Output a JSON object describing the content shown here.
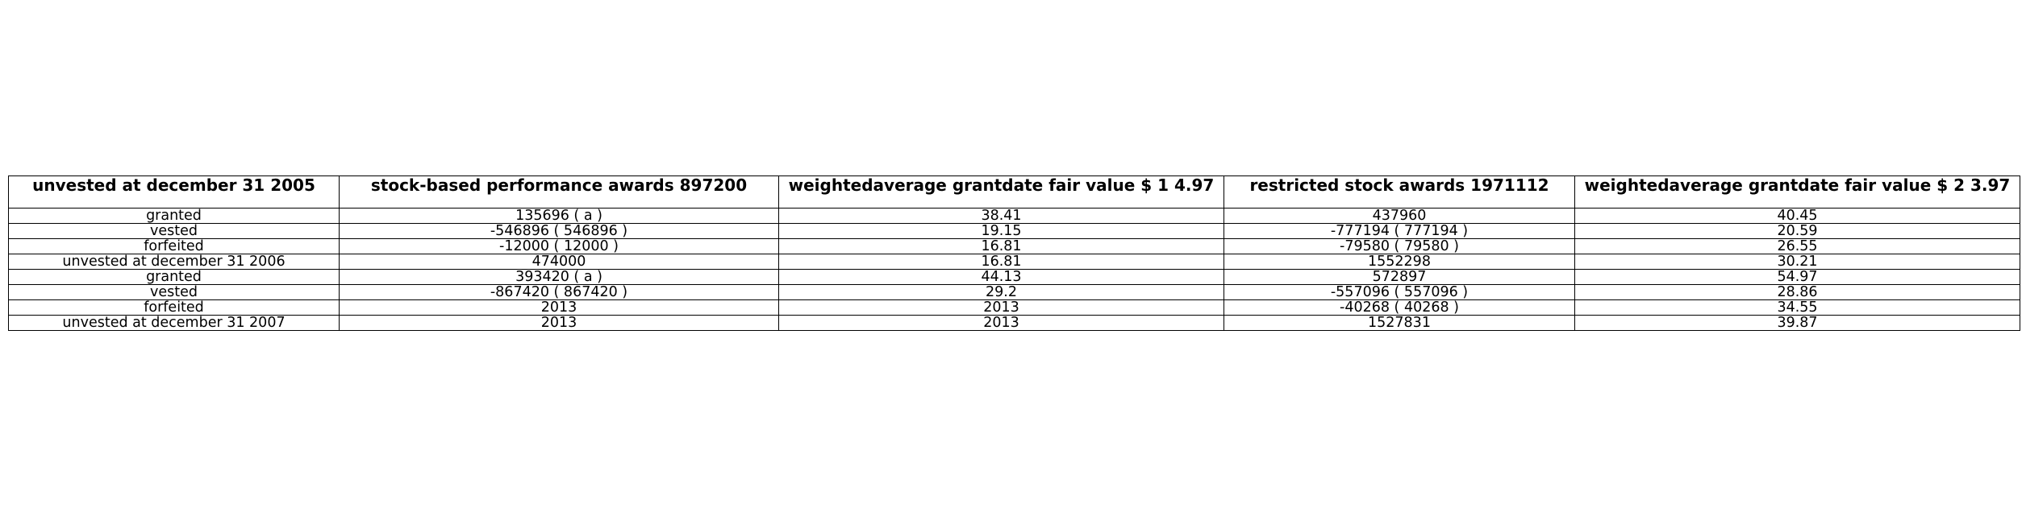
{
  "table": {
    "headers": [
      "unvested at december 31 2005",
      "stock-based performance awards 897200",
      "weightedaverage grantdate fair value $ 1 4.97",
      "restricted stock awards 1971112",
      "weightedaverage grantdate fair value $ 2 3.97"
    ],
    "rows": [
      [
        "granted",
        "135696 ( a )",
        "38.41",
        "437960",
        "40.45"
      ],
      [
        "vested",
        "-546896 ( 546896 )",
        "19.15",
        "-777194 ( 777194 )",
        "20.59"
      ],
      [
        "forfeited",
        "-12000 ( 12000 )",
        "16.81",
        "-79580 ( 79580 )",
        "26.55"
      ],
      [
        "unvested at december 31 2006",
        "474000",
        "16.81",
        "1552298",
        "30.21"
      ],
      [
        "granted",
        "393420 ( a )",
        "44.13",
        "572897",
        "54.97"
      ],
      [
        "vested",
        "-867420 ( 867420 )",
        "29.2",
        "-557096 ( 557096 )",
        "28.86"
      ],
      [
        "forfeited",
        "2013",
        "2013",
        "-40268 ( 40268 )",
        "34.55"
      ],
      [
        "unvested at december 31 2007",
        "2013",
        "2013",
        "1527831",
        "39.87"
      ]
    ]
  }
}
